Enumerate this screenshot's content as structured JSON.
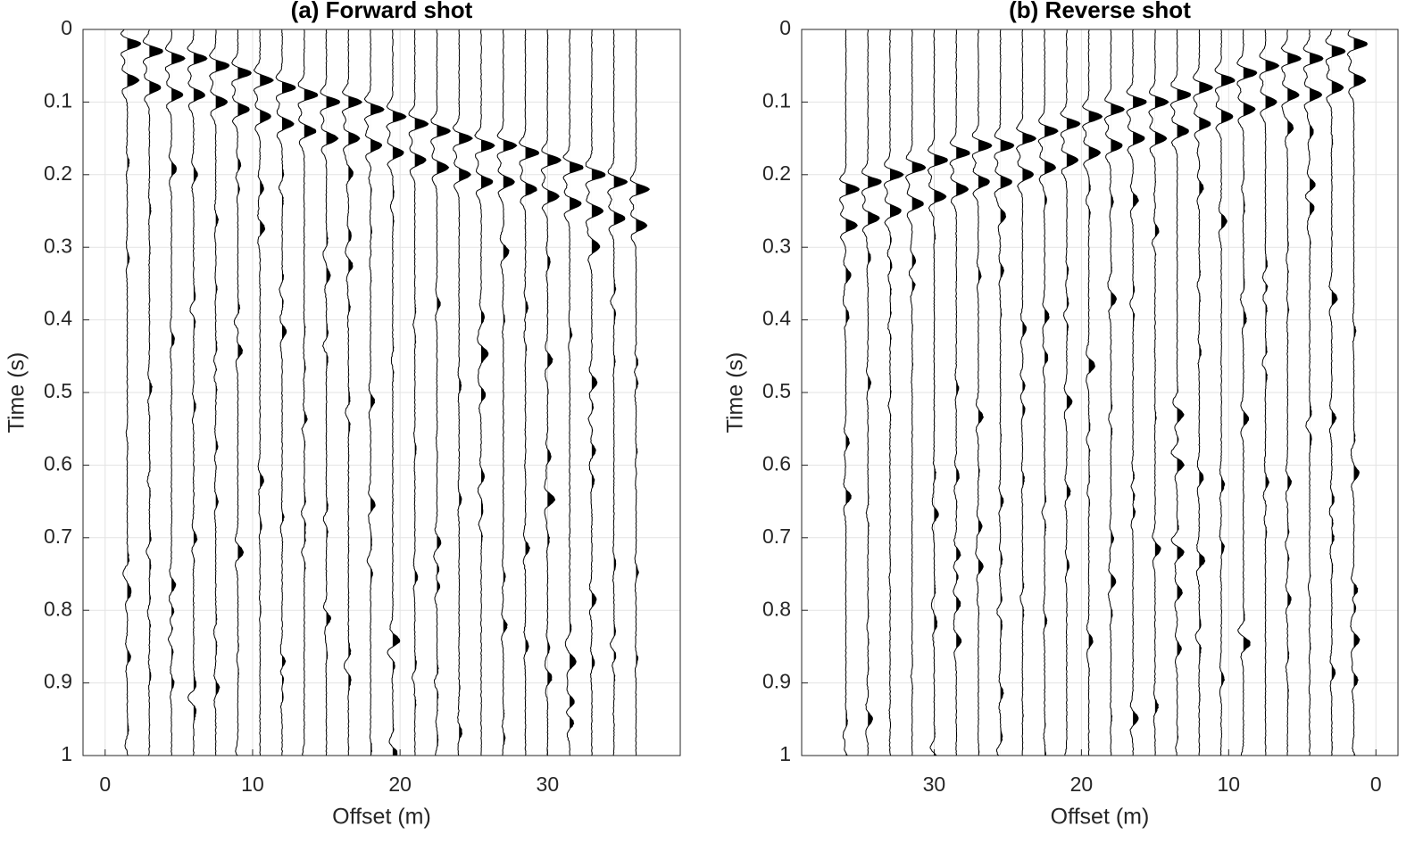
{
  "chart_data": [
    {
      "type": "wiggle",
      "title": "(a) Forward shot",
      "x_label": "Offset (m)",
      "y_label": "Time (s)",
      "x": [
        1.5,
        3,
        4.5,
        6,
        7.5,
        9,
        10.5,
        12,
        13.5,
        15,
        16.5,
        18,
        19.5,
        21,
        22.5,
        24,
        25.5,
        27,
        28.5,
        30,
        31.5,
        33,
        34.5,
        36
      ],
      "values": [
        0.02,
        0.03,
        0.04,
        0.04,
        0.05,
        0.06,
        0.07,
        0.08,
        0.09,
        0.1,
        0.1,
        0.11,
        0.12,
        0.13,
        0.14,
        0.15,
        0.16,
        0.16,
        0.17,
        0.18,
        0.19,
        0.2,
        0.21,
        0.22
      ],
      "xlim": [
        -1.5,
        39
      ],
      "xticks": [
        0,
        10,
        20,
        30
      ],
      "x_reversed": false,
      "ylim": [
        0,
        1
      ],
      "yticks": [
        0,
        0.1,
        0.2,
        0.3,
        0.4,
        0.5,
        0.6,
        0.7,
        0.8,
        0.9,
        1
      ],
      "y_reversed": true,
      "grid": true,
      "color": "#000000"
    },
    {
      "type": "wiggle",
      "title": "(b) Reverse shot",
      "x_label": "Offset (m)",
      "y_label": "Time (s)",
      "x": [
        1.5,
        3,
        4.5,
        6,
        7.5,
        9,
        10.5,
        12,
        13.5,
        15,
        16.5,
        18,
        19.5,
        21,
        22.5,
        24,
        25.5,
        27,
        28.5,
        30,
        31.5,
        33,
        34.5,
        36
      ],
      "values": [
        0.02,
        0.03,
        0.04,
        0.04,
        0.05,
        0.06,
        0.07,
        0.08,
        0.09,
        0.1,
        0.1,
        0.11,
        0.12,
        0.13,
        0.14,
        0.15,
        0.16,
        0.16,
        0.17,
        0.18,
        0.19,
        0.2,
        0.21,
        0.22
      ],
      "xlim": [
        39,
        -1.5
      ],
      "xticks": [
        0,
        10,
        20,
        30
      ],
      "x_reversed": true,
      "ylim": [
        0,
        1
      ],
      "yticks": [
        0,
        0.1,
        0.2,
        0.3,
        0.4,
        0.5,
        0.6,
        0.7,
        0.8,
        0.9,
        1
      ],
      "y_reversed": true,
      "grid": true,
      "color": "#000000"
    }
  ]
}
